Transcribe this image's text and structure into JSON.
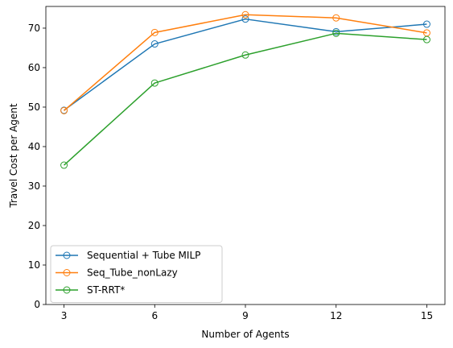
{
  "chart_data": {
    "type": "line",
    "xlabel": "Number of Agents",
    "ylabel": "Travel Cost per Agent",
    "x": [
      3,
      6,
      9,
      12,
      15
    ],
    "x_ticks": [
      "3",
      "6",
      "9",
      "12",
      "15"
    ],
    "y_ticks": [
      "0",
      "10",
      "20",
      "30",
      "40",
      "50",
      "60",
      "70"
    ],
    "xlim": [
      2.4,
      15.6
    ],
    "ylim": [
      0,
      75.5
    ],
    "grid": false,
    "legend_position": "lower-left",
    "markers": "hollow-circle",
    "series": [
      {
        "name": "Sequential + Tube MILP",
        "color": "#1f77b4",
        "values": [
          49.2,
          66.0,
          72.3,
          69.1,
          71.0
        ]
      },
      {
        "name": "Seq_Tube_nonLazy",
        "color": "#ff7f0e",
        "values": [
          49.1,
          68.9,
          73.4,
          72.6,
          68.8
        ]
      },
      {
        "name": "ST-RRT*",
        "color": "#2ca02c",
        "values": [
          35.3,
          56.1,
          63.2,
          68.7,
          67.1
        ]
      }
    ]
  }
}
